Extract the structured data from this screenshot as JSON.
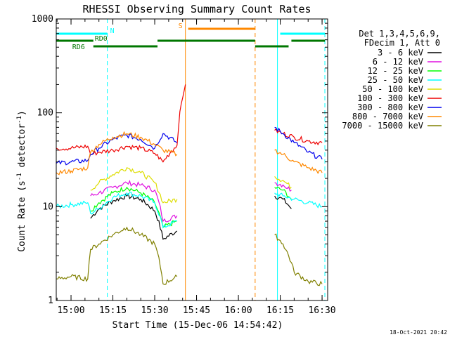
{
  "chart_data": {
    "type": "line",
    "title": "RHESSI Observing Summary Count Rates",
    "xlabel": "Start Time (15-Dec-06 14:54:42)",
    "ylabel_main": "Count Rate (s",
    "ylabel_sup1": "-1",
    "ylabel_mid": " detector",
    "ylabel_sup2": "-1",
    "ylabel_end": ")",
    "y_scale": "log",
    "xlim": [
      "14:54:42",
      "16:32:00"
    ],
    "ylim": [
      1,
      1000
    ],
    "x_ticks": [
      "15:00",
      "15:15",
      "15:30",
      "15:45",
      "16:00",
      "16:15",
      "16:30"
    ],
    "y_ticks": [
      "1",
      "10",
      "100",
      "1000"
    ],
    "legend_header": [
      "Det 1,3,4,5,6,9,",
      "FDecim 1, Att 0"
    ],
    "legend_position": "right",
    "series": [
      {
        "name": "3 - 6 keV",
        "color": "#000000",
        "x": [
          "15:07",
          "15:10",
          "15:15",
          "15:20",
          "15:25",
          "15:30",
          "15:33",
          "15:38",
          "16:13",
          "16:16",
          "16:19"
        ],
        "values": [
          7.5,
          9.5,
          11.5,
          13,
          12,
          9,
          4.5,
          5.5,
          13,
          12,
          9.5
        ]
      },
      {
        "name": "6 - 12 keV",
        "color": "#e010e0",
        "x": [
          "15:07",
          "15:10",
          "15:15",
          "15:20",
          "15:25",
          "15:30",
          "15:33",
          "15:38",
          "16:13",
          "16:16",
          "16:19"
        ],
        "values": [
          13,
          14,
          16,
          18,
          17,
          15,
          7,
          8,
          18,
          17,
          15
        ]
      },
      {
        "name": "12 - 25 keV",
        "color": "#00ff00",
        "x": [
          "15:07",
          "15:10",
          "15:15",
          "15:20",
          "15:25",
          "15:30",
          "15:33",
          "15:38",
          "16:13",
          "16:16",
          "16:19"
        ],
        "values": [
          9,
          11,
          14,
          16,
          14,
          11,
          6,
          7,
          16,
          15,
          12
        ]
      },
      {
        "name": "25 - 50 keV",
        "color": "#00ffff",
        "x": [
          "14:54:42",
          "15:00",
          "15:06",
          "15:07",
          "15:10",
          "15:15",
          "15:20",
          "15:25",
          "15:30",
          "15:33",
          "15:38",
          "16:13",
          "16:16",
          "16:20",
          "16:25",
          "16:30"
        ],
        "values": [
          10,
          10.5,
          11,
          8.5,
          9.5,
          12.5,
          14,
          13,
          11,
          6,
          7,
          14,
          13,
          12,
          11,
          10
        ]
      },
      {
        "name": "50 - 100 keV",
        "color": "#dddd00",
        "x": [
          "15:07",
          "15:10",
          "15:15",
          "15:20",
          "15:25",
          "15:30",
          "15:33",
          "15:38",
          "16:13",
          "16:16",
          "16:19"
        ],
        "values": [
          15,
          18,
          22,
          26,
          23,
          18,
          11,
          12,
          21,
          19,
          16
        ]
      },
      {
        "name": "100 - 300 keV",
        "color": "#ee0000",
        "x": [
          "14:54:42",
          "15:00",
          "15:06",
          "15:07",
          "15:10",
          "15:15",
          "15:20",
          "15:25",
          "15:30",
          "15:33",
          "15:38",
          "15:41",
          "16:13",
          "16:16",
          "16:20",
          "16:25",
          "16:30"
        ],
        "values": [
          42,
          42,
          44,
          36,
          38,
          40,
          44,
          42,
          37,
          30,
          45,
          200,
          65,
          60,
          55,
          50,
          48
        ]
      },
      {
        "name": "300 - 800 keV",
        "color": "#0000ee",
        "x": [
          "14:54:42",
          "15:00",
          "15:06",
          "15:07",
          "15:10",
          "15:15",
          "15:20",
          "15:25",
          "15:30",
          "15:33",
          "15:38",
          "16:13",
          "16:16",
          "16:20",
          "16:25",
          "16:30"
        ],
        "values": [
          29,
          30,
          31,
          36,
          42,
          52,
          58,
          52,
          42,
          60,
          48,
          70,
          60,
          48,
          38,
          32
        ]
      },
      {
        "name": "800 - 7000 keV",
        "color": "#ff8800",
        "x": [
          "14:54:42",
          "15:00",
          "15:06",
          "15:07",
          "15:10",
          "15:15",
          "15:20",
          "15:25",
          "15:30",
          "15:33",
          "15:38",
          "16:13",
          "16:16",
          "16:20",
          "16:25",
          "16:30"
        ],
        "values": [
          23,
          24,
          26,
          38,
          46,
          55,
          60,
          55,
          46,
          40,
          36,
          40,
          36,
          30,
          26,
          23
        ]
      },
      {
        "name": "7000 - 15000 keV",
        "color": "#808000",
        "x": [
          "14:54:42",
          "15:00",
          "15:06",
          "15:07",
          "15:10",
          "15:15",
          "15:20",
          "15:25",
          "15:30",
          "15:33",
          "15:38",
          "16:13",
          "16:16",
          "16:20",
          "16:25",
          "16:30"
        ],
        "values": [
          1.7,
          1.8,
          1.7,
          3.5,
          4,
          5,
          6,
          5,
          4,
          1.5,
          1.8,
          5,
          4,
          2,
          1.6,
          1.5
        ]
      }
    ],
    "state_bars": [
      {
        "label": "N",
        "color": "#00ffff",
        "segments": [
          [
            "14:54:42",
            "15:13"
          ],
          [
            "16:15",
            "16:31"
          ]
        ]
      },
      {
        "label": "S",
        "color": "#ff8800",
        "segments": [
          [
            "15:42",
            "16:06"
          ]
        ]
      },
      {
        "label": "RD0",
        "color": "#007700",
        "segments": [
          [
            "14:54:42",
            "15:08"
          ],
          [
            "15:31",
            "16:06"
          ],
          [
            "16:19",
            "16:31"
          ]
        ]
      },
      {
        "label": "RD6",
        "color": "#007700",
        "segments": [
          [
            "15:08",
            "15:31"
          ],
          [
            "16:06",
            "16:18"
          ]
        ]
      }
    ],
    "vertical_lines": [
      {
        "x": "14:54:42",
        "color": "#00ffff",
        "style": "solid"
      },
      {
        "x": "15:13",
        "color": "#00ffff",
        "style": "dashed"
      },
      {
        "x": "15:41",
        "color": "#ff8800",
        "style": "solid"
      },
      {
        "x": "16:06",
        "color": "#ff8800",
        "style": "dashed"
      },
      {
        "x": "16:14",
        "color": "#00ffff",
        "style": "solid"
      },
      {
        "x": "16:31",
        "color": "#00ffff",
        "style": "dashed"
      }
    ]
  },
  "footer_date": "18-Oct-2021 20:42"
}
